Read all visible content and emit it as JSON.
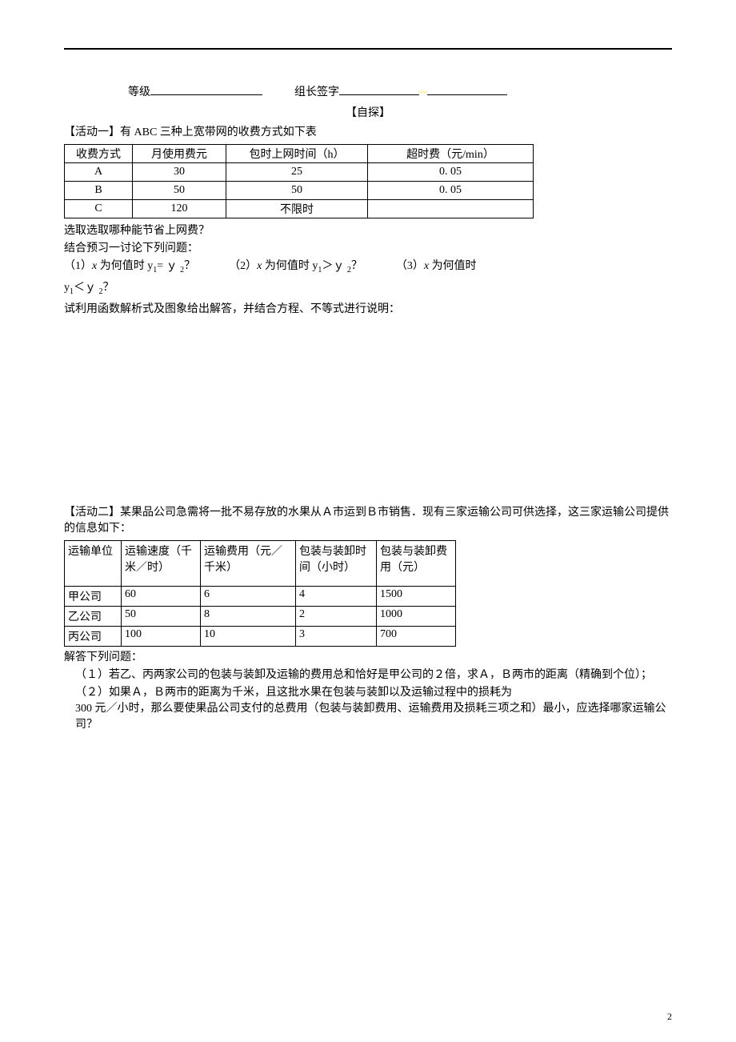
{
  "header": {
    "grade_label": "等级",
    "leader_label": "组长签字"
  },
  "explore_title": "【自探】",
  "activity1": {
    "title": "【活动一】有 ABC 三种上宽带网的收费方式如下表",
    "columns": [
      "收费方式",
      "月使用费元",
      "包时上网时间（h）",
      "超时费（元/min）"
    ],
    "rows": [
      [
        "A",
        "30",
        "25",
        "0. 05"
      ],
      [
        "B",
        "50",
        "50",
        "0. 05"
      ],
      [
        "C",
        "120",
        "不限时",
        ""
      ]
    ],
    "after1": "选取选取哪种能节省上网费？",
    "after2": "结合预习一讨论下列问题：",
    "q_parts": {
      "p1_pre": "（1）",
      "p1_mid": " 为何值时 y",
      "p1_eq": "= ｙ ",
      "p1_end": "？",
      "p2_pre": "（2）",
      "p2_mid": " 为何值时 y",
      "p2_gt": "＞ｙ ",
      "p2_end": "？",
      "p3_pre": "（3）",
      "p3_mid": " 为何值时",
      "q4_pre": "y",
      "q4_lt": "＜ｙ ",
      "q4_end": "？"
    },
    "after3": "试利用函数解析式及图象给出解答，并结合方程、不等式进行说明："
  },
  "activity2": {
    "title": "【活动二】某果品公司急需将一批不易存放的水果从Ａ市运到Ｂ市销售．现有三家运输公司可供选择，这三家运输公司提供的信息如下：",
    "columns": [
      "运输单位",
      "运输速度（千米／时）",
      "运输费用（元／千米）",
      "包装与装卸时间（小时）",
      "包装与装卸费用（元）"
    ],
    "rows": [
      [
        "甲公司",
        "60",
        "6",
        "4",
        "1500"
      ],
      [
        "乙公司",
        "50",
        "8",
        "2",
        "1000"
      ],
      [
        "丙公司",
        "100",
        "10",
        "3",
        "700"
      ]
    ],
    "after1": "解答下列问题：",
    "q1": "（１）若乙、丙两家公司的包装与装卸及运输的费用总和恰好是甲公司的２倍，求Ａ，Ｂ两市的距离（精确到个位）；",
    "q2": "（２）如果Ａ，Ｂ两市的距离为千米，且这批水果在包装与装卸以及运输过程中的损耗为\n300 元／小时，那么要使果品公司支付的总费用（包装与装卸费用、运输费用及损耗三项之和）最小，应选择哪家运输公司？"
  },
  "page_number": "2"
}
